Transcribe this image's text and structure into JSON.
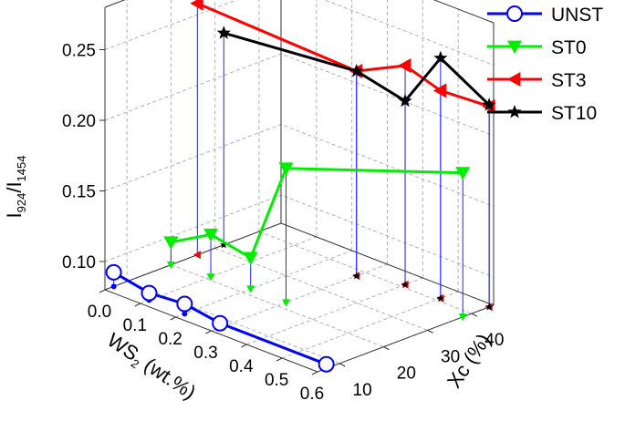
{
  "chart_data": {
    "type": "scatter3d",
    "axes": {
      "x": {
        "label": "WS",
        "label_sub": "2",
        "label_tail": " (wt.%)",
        "ticks": [
          "0.0",
          "0.1",
          "0.2",
          "0.3",
          "0.4",
          "0.5",
          "0.6"
        ],
        "range": [
          0.0,
          0.6
        ]
      },
      "y": {
        "label": "Xc (%)",
        "ticks": [
          "10",
          "20",
          "30",
          "40"
        ],
        "range": [
          5,
          45
        ]
      },
      "z": {
        "label": "I",
        "label_sub1": "924",
        "label_mid": "/I",
        "label_sub2": "1454",
        "ticks": [
          "0.10",
          "0.15",
          "0.20",
          "0.25"
        ],
        "range": [
          0.08,
          0.28
        ]
      }
    },
    "grid": true,
    "drop_lines": true,
    "legend_position": "top-right",
    "series": [
      {
        "name": "UNST",
        "color": "#0000ff",
        "marker": "circle-open",
        "points": [
          [
            0.0,
            7,
            0.09
          ],
          [
            0.1,
            7,
            0.085
          ],
          [
            0.2,
            7,
            0.087
          ],
          [
            0.3,
            7,
            0.083
          ],
          [
            0.6,
            7,
            0.083
          ]
        ]
      },
      {
        "name": "ST0",
        "color": "#00ee00",
        "marker": "triangle-down",
        "points": [
          [
            0.0,
            20,
            0.096
          ],
          [
            0.1,
            21,
            0.11
          ],
          [
            0.2,
            22,
            0.102
          ],
          [
            0.3,
            22,
            0.175
          ],
          [
            0.6,
            38,
            0.182
          ]
        ]
      },
      {
        "name": "ST3",
        "color": "#ff0000",
        "marker": "triangle-left",
        "points": [
          [
            0.0,
            26,
            0.258
          ],
          [
            0.3,
            38,
            0.225
          ],
          [
            0.4,
            41,
            0.235
          ],
          [
            0.5,
            41,
            0.227
          ],
          [
            0.6,
            44,
            0.222
          ]
        ]
      },
      {
        "name": "ST10",
        "color": "#000000",
        "marker": "star",
        "points": [
          [
            0.0,
            32,
            0.23
          ],
          [
            0.3,
            38,
            0.225
          ],
          [
            0.4,
            41,
            0.21
          ],
          [
            0.5,
            41,
            0.25
          ],
          [
            0.6,
            44,
            0.223
          ]
        ]
      }
    ]
  }
}
